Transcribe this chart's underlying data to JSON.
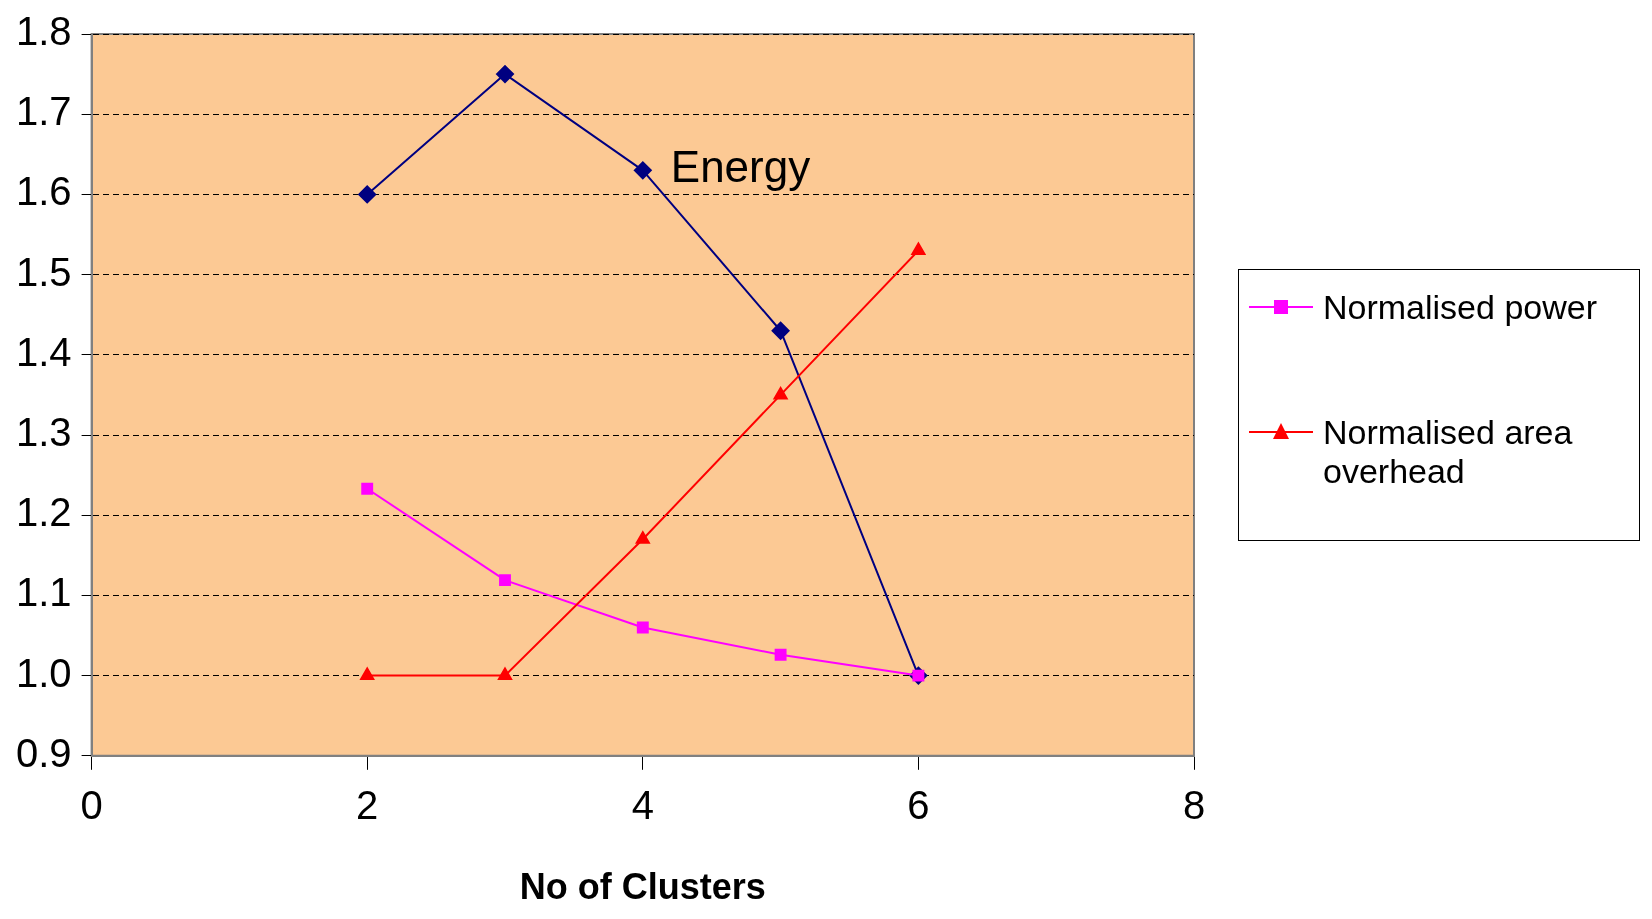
{
  "chart_data": {
    "type": "line",
    "xlabel": "No of Clusters",
    "x": [
      2,
      3,
      4,
      5,
      6
    ],
    "series": [
      {
        "color": "#000080",
        "marker": "diamond",
        "values": [
          1.6,
          1.75,
          1.63,
          1.43,
          1.0
        ]
      },
      {
        "name": "Normalised power",
        "color": "#ff00ff",
        "marker": "square",
        "values": [
          1.233,
          1.119,
          1.06,
          1.026,
          1.0
        ]
      },
      {
        "name": "Normalised area overhead",
        "color": "#ff0000",
        "marker": "triangle",
        "values": [
          1.0,
          1.0,
          1.17,
          1.35,
          1.53
        ]
      }
    ],
    "annotations": [
      {
        "text": "Energy",
        "x": 4,
        "y": 1.63
      }
    ],
    "xlim": [
      0,
      8
    ],
    "xticks": [
      0,
      2,
      4,
      6,
      8
    ],
    "ylim": [
      0.9,
      1.8
    ],
    "yticks": [
      {
        "value": 0.9,
        "label": "0.9"
      },
      {
        "value": 1.0,
        "label": "1.0"
      },
      1.1,
      1.2,
      1.3,
      1.4,
      1.5,
      1.6,
      1.7,
      1.8
    ],
    "grid": "y",
    "legend": "right",
    "line_style": "solid"
  }
}
